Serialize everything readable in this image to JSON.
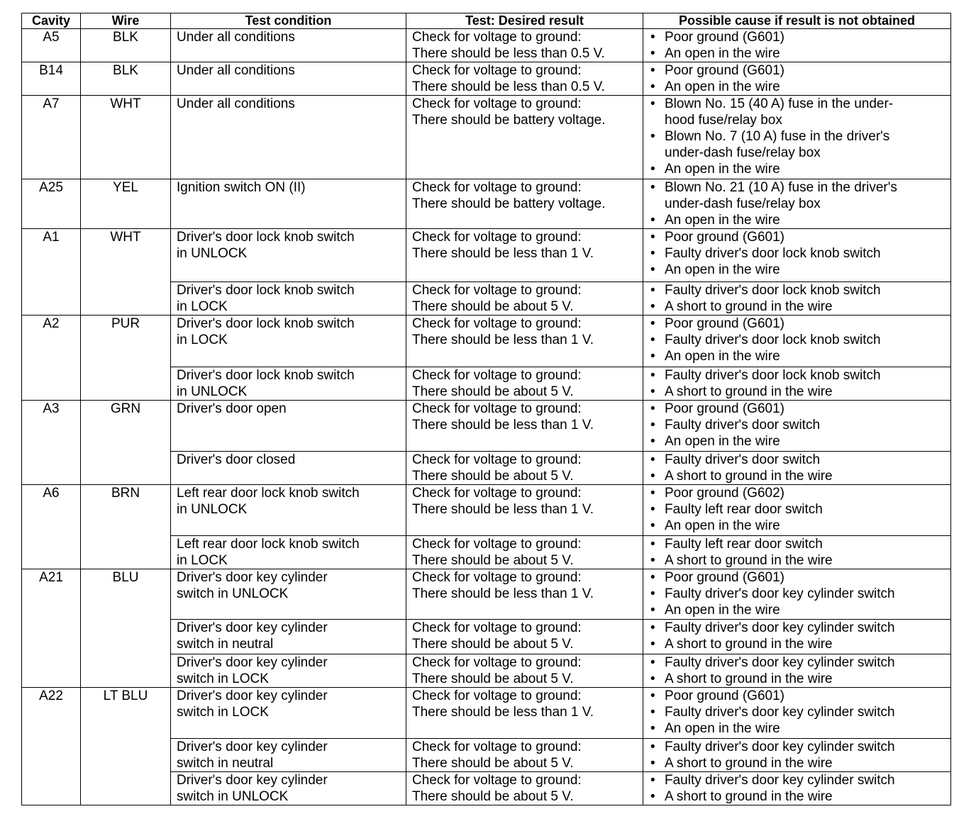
{
  "headers": [
    "Cavity",
    "Wire",
    "Test condition",
    "Test: Desired result",
    "Possible cause if result is not obtained"
  ],
  "rows": [
    {
      "cavity": "A5",
      "wire": "BLK",
      "tests": [
        {
          "condition": "Under all conditions",
          "result": "Check for voltage to ground:\nThere should be less than 0.5 V.",
          "causes": [
            "Poor ground (G601)",
            "An open in the wire"
          ]
        }
      ]
    },
    {
      "cavity": "B14",
      "wire": "BLK",
      "tests": [
        {
          "condition": "Under all conditions",
          "result": "Check for voltage to ground:\nThere should be less than 0.5 V.",
          "causes": [
            "Poor ground (G601)",
            "An open in the wire"
          ]
        }
      ]
    },
    {
      "cavity": "A7",
      "wire": "WHT",
      "tests": [
        {
          "condition": "Under all conditions",
          "result": "Check for voltage to ground:\nThere should be battery voltage.",
          "causes": [
            "Blown No. 15 (40 A) fuse in the under-\nhood fuse/relay box",
            "Blown No. 7 (10 A) fuse in the driver's\nunder-dash fuse/relay box",
            "An open in the wire"
          ]
        }
      ]
    },
    {
      "cavity": "A25",
      "wire": "YEL",
      "tests": [
        {
          "condition": "Ignition switch ON (II)",
          "result": "Check for voltage to ground:\nThere should be battery voltage.",
          "causes": [
            "Blown No. 21 (10 A) fuse in the driver's\nunder-dash fuse/relay box",
            "An open in the wire"
          ]
        }
      ]
    },
    {
      "cavity": "A1",
      "wire": "WHT",
      "tests": [
        {
          "condition": "Driver's door lock knob switch\nin UNLOCK",
          "result": "Check for voltage to ground:\nThere should be less than 1 V.",
          "causes": [
            "Poor ground (G601)",
            "Faulty driver's door lock knob switch",
            "An open in the wire"
          ]
        },
        {
          "condition": "Driver's door lock knob switch\nin LOCK",
          "result": "Check for voltage to ground:\nThere should be about 5 V.",
          "causes": [
            "Faulty driver's door lock knob switch",
            "A short to ground in the wire"
          ]
        }
      ]
    },
    {
      "cavity": "A2",
      "wire": "PUR",
      "tests": [
        {
          "condition": "Driver's door lock knob switch\nin LOCK",
          "result": "Check for voltage to ground:\nThere should be less than 1 V.",
          "causes": [
            "Poor ground (G601)",
            "Faulty driver's door lock knob switch",
            "An open in the wire"
          ]
        },
        {
          "condition": "Driver's door lock knob switch\nin UNLOCK",
          "result": "Check for voltage to ground:\nThere should be about 5 V.",
          "causes": [
            "Faulty driver's door lock knob switch",
            "A short to ground in the wire"
          ]
        }
      ]
    },
    {
      "cavity": "A3",
      "wire": "GRN",
      "tests": [
        {
          "condition": "Driver's door open",
          "result": "Check for voltage to ground:\nThere should be less than 1 V.",
          "causes": [
            "Poor ground (G601)",
            "Faulty driver's door switch",
            "An open in the wire"
          ]
        },
        {
          "condition": "Driver's door closed",
          "result": "Check for voltage to ground:\nThere should be about 5 V.",
          "causes": [
            "Faulty driver's door switch",
            "A short to ground in the wire"
          ]
        }
      ]
    },
    {
      "cavity": "A6",
      "wire": "BRN",
      "tests": [
        {
          "condition": "Left rear door lock knob switch\nin UNLOCK",
          "result": "Check for voltage to ground:\nThere should be less than 1 V.",
          "causes": [
            "Poor ground (G602)",
            "Faulty left rear door switch",
            "An open in the wire"
          ]
        },
        {
          "condition": "Left rear door lock knob switch\nin LOCK",
          "result": "Check for voltage to ground:\nThere should be about 5 V.",
          "causes": [
            "Faulty left rear door switch",
            "A short to ground in the wire"
          ]
        }
      ]
    },
    {
      "cavity": "A21",
      "wire": "BLU",
      "tests": [
        {
          "condition": "Driver's door key cylinder\nswitch in UNLOCK",
          "result": "Check for voltage to ground:\nThere should be less than 1 V.",
          "causes": [
            "Poor ground (G601)",
            "Faulty driver's door key cylinder switch",
            "An open in the wire"
          ]
        },
        {
          "condition": "Driver's door key cylinder\nswitch in neutral",
          "result": "Check for voltage to ground:\nThere should be about 5 V.",
          "causes": [
            "Faulty driver's door key cylinder switch",
            "A short to ground in the wire"
          ]
        },
        {
          "condition": "Driver's door key cylinder\nswitch in LOCK",
          "result": "Check for voltage to ground:\nThere should be about 5 V.",
          "causes": [
            "Faulty driver's door key cylinder switch",
            "A short to ground in the wire"
          ]
        }
      ]
    },
    {
      "cavity": "A22",
      "wire": "LT BLU",
      "tests": [
        {
          "condition": "Driver's door key cylinder\nswitch in LOCK",
          "result": "Check for voltage to ground:\nThere should be less than 1 V.",
          "causes": [
            "Poor ground (G601)",
            "Faulty driver's door key cylinder switch",
            "An open in the wire"
          ]
        },
        {
          "condition": "Driver's door key cylinder\nswitch in neutral",
          "result": "Check for voltage to ground:\nThere should be about 5 V.",
          "causes": [
            "Faulty driver's door key cylinder switch",
            "A short to ground in the wire"
          ]
        },
        {
          "condition": "Driver's door key cylinder\nswitch in UNLOCK",
          "result": "Check for voltage to ground:\nThere should be about 5 V.",
          "causes": [
            "Faulty driver's door key cylinder switch",
            "A short to ground in the wire"
          ]
        }
      ]
    }
  ]
}
